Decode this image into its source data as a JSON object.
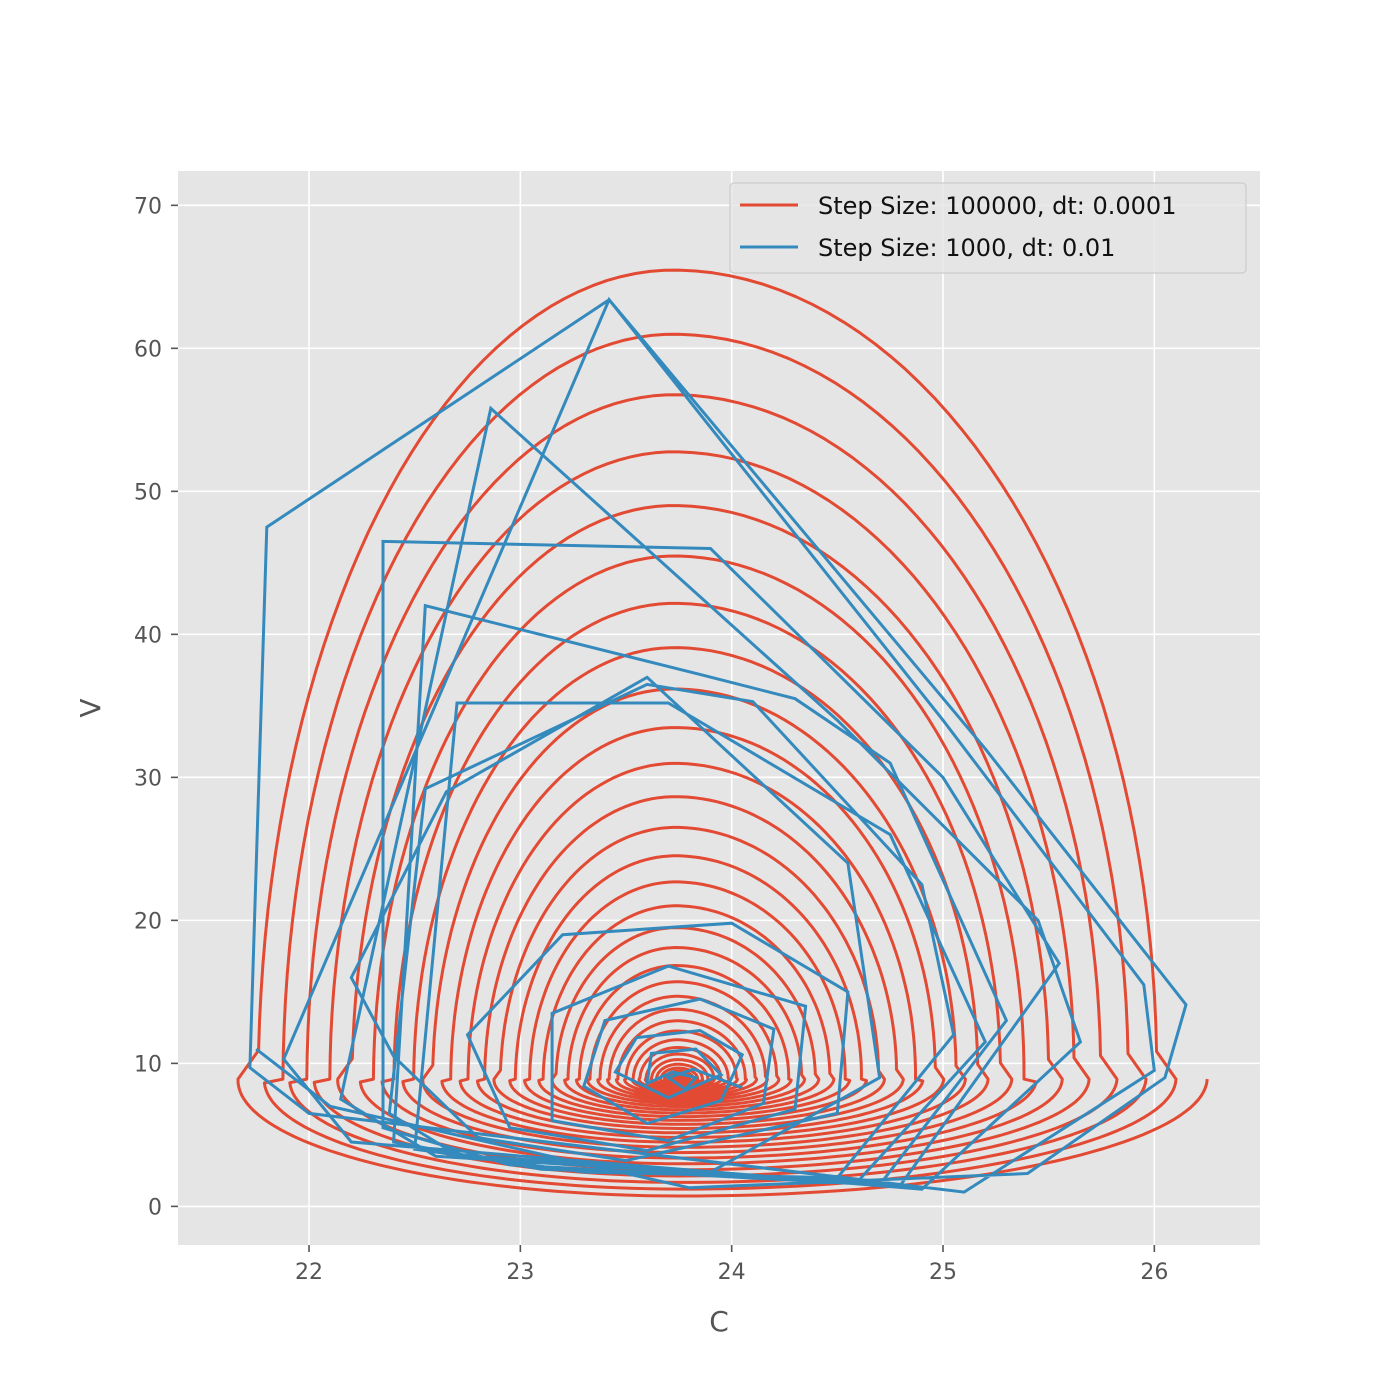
{
  "chart_data": {
    "type": "line",
    "title": "",
    "xlabel": "C",
    "ylabel": "V",
    "xlim": [
      21.38,
      26.5
    ],
    "ylim": [
      -2.7,
      72.4
    ],
    "xticks": [
      22,
      23,
      24,
      25,
      26
    ],
    "yticks": [
      0,
      10,
      20,
      30,
      40,
      50,
      60,
      70
    ],
    "grid": true,
    "legend_position": "top-right",
    "series": [
      {
        "name": "Step Size: 100000, dt: 0.0001",
        "color": "#E24A33",
        "kind": "smooth-spiral",
        "center": [
          23.75,
          8.9
        ],
        "turns": 40,
        "outermost_extent": {
          "c_min": 21.6,
          "c_max": 26.25,
          "v_min": 0.6,
          "v_max": 69.0
        },
        "peak_values_v": [
          69.0,
          62.0,
          54.8,
          49.8,
          46.4,
          43.9,
          42.0,
          40.5,
          39.3,
          38.4
        ]
      },
      {
        "name": "Step Size: 1000, dt: 0.01",
        "color": "#348ABD",
        "kind": "coarse-spiral",
        "points": [
          [
            24.05,
            8.3
          ],
          [
            23.82,
            9.6
          ],
          [
            23.7,
            9.0
          ],
          [
            23.78,
            8.2
          ],
          [
            23.83,
            9.0
          ],
          [
            23.72,
            9.4
          ],
          [
            23.6,
            8.6
          ],
          [
            23.62,
            10.7
          ],
          [
            23.83,
            11.0
          ],
          [
            23.95,
            9.2
          ],
          [
            23.7,
            7.6
          ],
          [
            23.45,
            9.4
          ],
          [
            23.55,
            11.8
          ],
          [
            23.85,
            12.3
          ],
          [
            24.05,
            10.6
          ],
          [
            23.95,
            7.4
          ],
          [
            23.6,
            5.8
          ],
          [
            23.3,
            8.4
          ],
          [
            23.4,
            13.0
          ],
          [
            23.85,
            14.5
          ],
          [
            24.2,
            12.4
          ],
          [
            24.15,
            7.2
          ],
          [
            23.7,
            4.6
          ],
          [
            23.15,
            6.0
          ],
          [
            23.15,
            13.5
          ],
          [
            23.7,
            16.8
          ],
          [
            24.35,
            14.0
          ],
          [
            24.3,
            6.8
          ],
          [
            23.6,
            3.9
          ],
          [
            22.95,
            5.5
          ],
          [
            22.75,
            12.0
          ],
          [
            23.2,
            19.0
          ],
          [
            24.0,
            19.8
          ],
          [
            24.55,
            15.0
          ],
          [
            24.5,
            6.5
          ],
          [
            23.5,
            3.2
          ],
          [
            22.8,
            4.8
          ],
          [
            22.4,
            10.5
          ],
          [
            22.2,
            16.0
          ],
          [
            22.65,
            29.0
          ],
          [
            23.6,
            37.0
          ],
          [
            24.55,
            24.0
          ],
          [
            24.7,
            9.0
          ],
          [
            23.9,
            2.4
          ],
          [
            22.7,
            3.6
          ],
          [
            22.38,
            6.5
          ],
          [
            22.55,
            29.2
          ],
          [
            23.6,
            36.5
          ],
          [
            24.1,
            35.3
          ],
          [
            24.9,
            22.5
          ],
          [
            25.05,
            12.0
          ],
          [
            24.5,
            2.0
          ],
          [
            23.3,
            2.4
          ],
          [
            22.5,
            4.0
          ],
          [
            22.7,
            35.2
          ],
          [
            23.7,
            35.2
          ],
          [
            24.75,
            26.0
          ],
          [
            25.2,
            11.5
          ],
          [
            24.6,
            1.8
          ],
          [
            23.1,
            2.6
          ],
          [
            22.4,
            4.5
          ],
          [
            22.55,
            42.0
          ],
          [
            23.85,
            37.2
          ],
          [
            24.3,
            35.5
          ],
          [
            24.75,
            31.0
          ],
          [
            25.3,
            13.0
          ],
          [
            24.7,
            1.5
          ],
          [
            22.95,
            2.9
          ],
          [
            22.35,
            5.5
          ],
          [
            22.35,
            46.5
          ],
          [
            23.9,
            46.0
          ],
          [
            25.0,
            30.0
          ],
          [
            25.55,
            17.0
          ],
          [
            24.8,
            1.5
          ],
          [
            22.6,
            3.5
          ],
          [
            22.15,
            7.5
          ],
          [
            22.86,
            55.8
          ],
          [
            24.5,
            34.0
          ],
          [
            25.45,
            20.0
          ],
          [
            25.65,
            11.5
          ],
          [
            24.9,
            1.2
          ],
          [
            22.2,
            4.5
          ],
          [
            21.88,
            10.3
          ],
          [
            23.42,
            63.4
          ],
          [
            25.0,
            34.0
          ],
          [
            25.95,
            15.5
          ],
          [
            26.0,
            9.5
          ],
          [
            25.1,
            1.0
          ],
          [
            22.0,
            6.5
          ],
          [
            21.72,
            9.7
          ],
          [
            21.8,
            47.5
          ],
          [
            23.42,
            63.4
          ],
          [
            25.2,
            32.0
          ],
          [
            26.15,
            14.1
          ],
          [
            26.05,
            9.0
          ],
          [
            25.4,
            2.3
          ],
          [
            23.8,
            1.3
          ],
          [
            22.1,
            7.0
          ],
          [
            21.75,
            11.0
          ]
        ]
      }
    ]
  }
}
